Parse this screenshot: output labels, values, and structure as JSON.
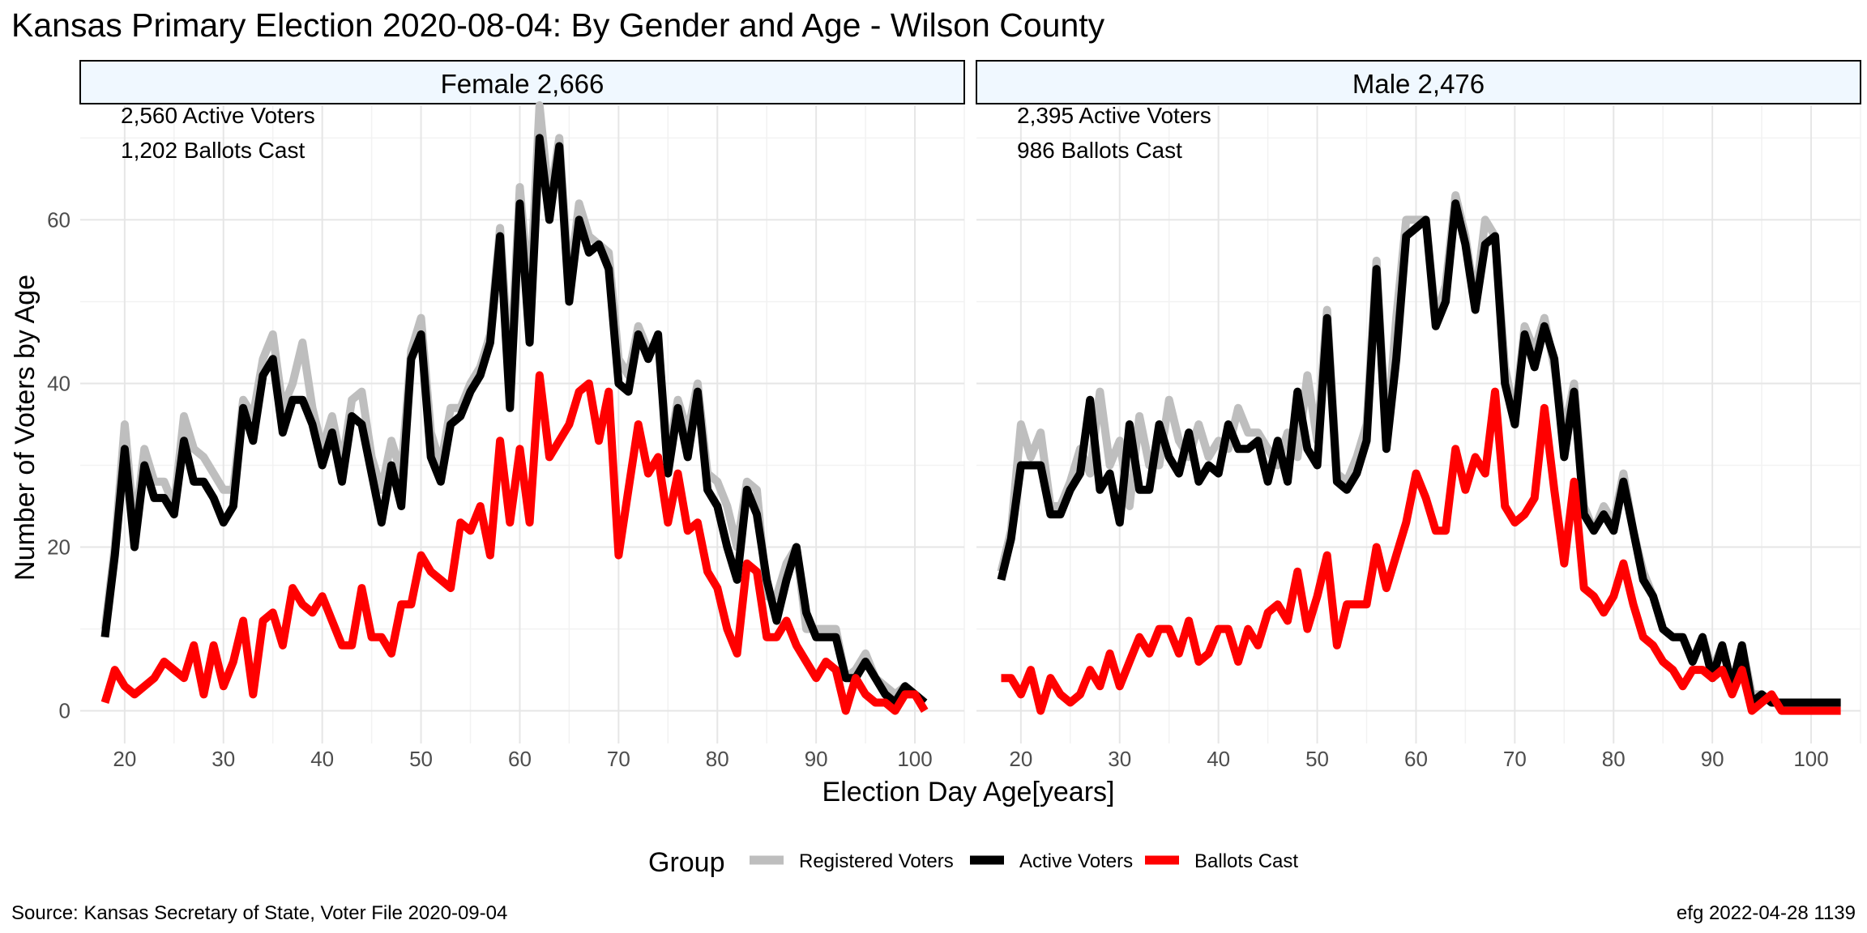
{
  "chart_data": {
    "type": "line",
    "title": "Kansas Primary Election 2020-08-04:  By Gender and Age - Wilson County",
    "xlabel": "Election Day Age[years]",
    "ylabel": "Number of Voters by Age",
    "xlim": [
      15.5,
      105
    ],
    "ylim": [
      -4,
      74
    ],
    "x_ticks": [
      20,
      30,
      40,
      50,
      60,
      70,
      80,
      90,
      100
    ],
    "y_ticks": [
      0,
      20,
      40,
      60
    ],
    "legend": {
      "title": "Group",
      "position": "bottom",
      "entries": [
        {
          "label": "Registered Voters",
          "color": "#bebebe"
        },
        {
          "label": "Active Voters",
          "color": "#000000"
        },
        {
          "label": "Ballots Cast",
          "color": "#ff0000"
        }
      ]
    },
    "panels": [
      {
        "strip": "Female 2,666",
        "annotations": [
          "2,560 Active Voters",
          "1,202 Ballots Cast"
        ],
        "x": [
          18,
          19,
          20,
          21,
          22,
          23,
          24,
          25,
          26,
          27,
          28,
          29,
          30,
          31,
          32,
          33,
          34,
          35,
          36,
          37,
          38,
          39,
          40,
          41,
          42,
          43,
          44,
          45,
          46,
          47,
          48,
          49,
          50,
          51,
          52,
          53,
          54,
          55,
          56,
          57,
          58,
          59,
          60,
          61,
          62,
          63,
          64,
          65,
          66,
          67,
          68,
          69,
          70,
          71,
          72,
          73,
          74,
          75,
          76,
          77,
          78,
          79,
          80,
          81,
          82,
          83,
          84,
          85,
          86,
          87,
          88,
          89,
          90,
          91,
          92,
          93,
          94,
          95,
          96,
          97,
          98,
          99,
          100,
          101
        ],
        "series": [
          {
            "name": "Registered Voters",
            "color": "#bebebe",
            "values": [
              10,
              20,
              35,
              22,
              32,
              28,
              28,
              25,
              36,
              32,
              31,
              29,
              27,
              27,
              38,
              36,
              43,
              46,
              37,
              40,
              45,
              37,
              32,
              36,
              30,
              38,
              39,
              31,
              27,
              33,
              29,
              44,
              48,
              34,
              30,
              37,
              37,
              40,
              42,
              46,
              59,
              41,
              64,
              50,
              74,
              62,
              70,
              52,
              62,
              58,
              57,
              56,
              43,
              41,
              47,
              44,
              45,
              31,
              38,
              34,
              40,
              29,
              28,
              25,
              20,
              28,
              27,
              14,
              14,
              18,
              20,
              10,
              10,
              10,
              10,
              4,
              5,
              7,
              4,
              3,
              2,
              3,
              2,
              1
            ],
            "opacity": 1
          },
          {
            "name": "Active Voters",
            "color": "#000000",
            "values": [
              9,
              19,
              32,
              20,
              30,
              26,
              26,
              24,
              33,
              28,
              28,
              26,
              23,
              25,
              37,
              33,
              41,
              43,
              34,
              38,
              38,
              35,
              30,
              34,
              28,
              36,
              35,
              29,
              23,
              30,
              25,
              43,
              46,
              31,
              28,
              35,
              36,
              39,
              41,
              45,
              58,
              37,
              62,
              45,
              70,
              60,
              69,
              50,
              60,
              56,
              57,
              54,
              40,
              39,
              46,
              43,
              46,
              29,
              37,
              31,
              39,
              27,
              25,
              20,
              16,
              27,
              24,
              16,
              11,
              16,
              20,
              12,
              9,
              9,
              9,
              4,
              4,
              6,
              4,
              2,
              1,
              3,
              2,
              1
            ]
          },
          {
            "name": "Ballots Cast",
            "color": "#ff0000",
            "values": [
              1,
              5,
              3,
              2,
              3,
              4,
              6,
              5,
              4,
              8,
              2,
              8,
              3,
              6,
              11,
              2,
              11,
              12,
              8,
              15,
              13,
              12,
              14,
              11,
              8,
              8,
              15,
              9,
              9,
              7,
              13,
              13,
              19,
              17,
              16,
              15,
              23,
              22,
              25,
              19,
              33,
              23,
              32,
              23,
              41,
              31,
              33,
              35,
              39,
              40,
              33,
              39,
              19,
              27,
              35,
              29,
              31,
              23,
              29,
              22,
              23,
              17,
              15,
              10,
              7,
              18,
              17,
              9,
              9,
              11,
              8,
              6,
              4,
              6,
              5,
              0,
              4,
              2,
              1,
              1,
              0,
              2,
              2,
              0
            ]
          }
        ]
      },
      {
        "strip": "Male 2,476",
        "annotations": [
          "2,395 Active Voters",
          "986 Ballots Cast"
        ],
        "x": [
          18,
          19,
          20,
          21,
          22,
          23,
          24,
          25,
          26,
          27,
          28,
          29,
          30,
          31,
          32,
          33,
          34,
          35,
          36,
          37,
          38,
          39,
          40,
          41,
          42,
          43,
          44,
          45,
          46,
          47,
          48,
          49,
          50,
          51,
          52,
          53,
          54,
          55,
          56,
          57,
          58,
          59,
          60,
          61,
          62,
          63,
          64,
          65,
          66,
          67,
          68,
          69,
          70,
          71,
          72,
          73,
          74,
          75,
          76,
          77,
          78,
          79,
          80,
          81,
          82,
          83,
          84,
          85,
          86,
          87,
          88,
          89,
          90,
          91,
          92,
          93,
          94,
          95,
          96,
          97,
          98,
          99,
          100,
          101,
          102,
          103
        ],
        "series": [
          {
            "name": "Registered Voters",
            "color": "#bebebe",
            "values": [
              17,
              22,
              35,
              31,
              34,
              25,
              25,
              28,
              32,
              29,
              39,
              30,
              33,
              25,
              36,
              30,
              30,
              38,
              33,
              31,
              35,
              31,
              33,
              32,
              37,
              34,
              34,
              32,
              30,
              34,
              31,
              41,
              33,
              49,
              29,
              28,
              31,
              35,
              55,
              33,
              48,
              60,
              60,
              60,
              48,
              52,
              63,
              58,
              50,
              60,
              58,
              42,
              36,
              47,
              44,
              48,
              42,
              34,
              40,
              25,
              22,
              25,
              23,
              29,
              22,
              17,
              14,
              10,
              9,
              9,
              6,
              9,
              5,
              8,
              3,
              8,
              2,
              2,
              1,
              1,
              1,
              1,
              1,
              1,
              1,
              1
            ],
            "opacity": 1
          },
          {
            "name": "Active Voters",
            "color": "#000000",
            "values": [
              16,
              21,
              30,
              30,
              30,
              24,
              24,
              27,
              29,
              38,
              27,
              29,
              23,
              35,
              27,
              27,
              35,
              31,
              29,
              34,
              28,
              30,
              29,
              35,
              32,
              32,
              33,
              28,
              33,
              28,
              39,
              32,
              30,
              48,
              28,
              27,
              29,
              33,
              54,
              32,
              43,
              58,
              59,
              60,
              47,
              50,
              62,
              57,
              49,
              57,
              58,
              40,
              35,
              46,
              42,
              47,
              43,
              31,
              39,
              24,
              22,
              24,
              22,
              28,
              22,
              16,
              14,
              10,
              9,
              9,
              6,
              9,
              4,
              8,
              3,
              8,
              1,
              2,
              1,
              1,
              1,
              1,
              1,
              1,
              1,
              1
            ]
          },
          {
            "name": "Ballots Cast",
            "color": "#ff0000",
            "values": [
              4,
              4,
              2,
              5,
              0,
              4,
              2,
              1,
              2,
              5,
              3,
              7,
              3,
              6,
              9,
              7,
              10,
              10,
              7,
              11,
              6,
              7,
              10,
              10,
              6,
              10,
              8,
              12,
              13,
              11,
              17,
              10,
              14,
              19,
              8,
              13,
              13,
              13,
              20,
              15,
              19,
              23,
              29,
              26,
              22,
              22,
              32,
              27,
              31,
              29,
              39,
              25,
              23,
              24,
              26,
              37,
              27,
              18,
              28,
              15,
              14,
              12,
              14,
              18,
              13,
              9,
              8,
              6,
              5,
              3,
              5,
              5,
              4,
              5,
              2,
              5,
              0,
              1,
              2,
              0,
              0,
              0,
              0,
              0,
              0,
              0
            ]
          }
        ]
      }
    ]
  },
  "footer": {
    "source": "Source:  Kansas Secretary of State, Voter File  2020-09-04",
    "stamp": "efg 2022-04-28 1139"
  }
}
